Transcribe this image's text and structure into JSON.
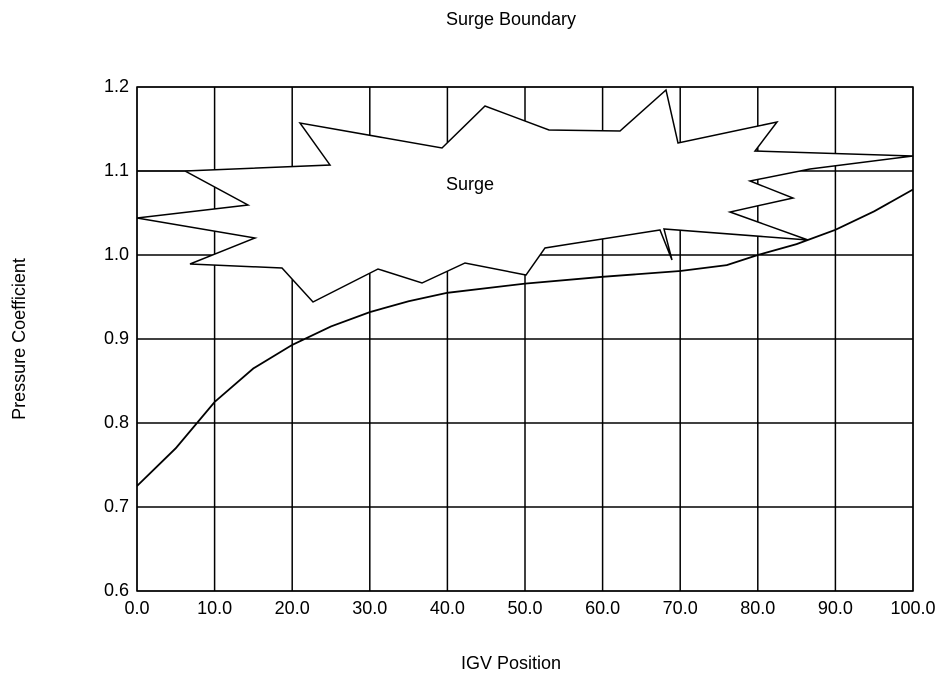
{
  "chart_data": {
    "type": "line",
    "title": "Surge Boundary",
    "x_label": "IGV Position",
    "y_label": "Pressure Coefficient",
    "annotation": "Surge",
    "x": [
      0,
      5,
      10,
      15,
      20,
      25,
      30,
      35,
      40,
      50,
      60,
      70,
      76,
      80,
      85,
      90,
      95,
      100
    ],
    "values": [
      0.725,
      0.77,
      0.825,
      0.865,
      0.893,
      0.915,
      0.932,
      0.945,
      0.955,
      0.966,
      0.974,
      0.981,
      0.988,
      1.0,
      1.013,
      1.03,
      1.052,
      1.078
    ],
    "color": "#000000",
    "xlim": [
      0,
      100
    ],
    "xticks": [
      {
        "value": 0,
        "label": "0.0"
      },
      {
        "value": 10,
        "label": "10.0"
      },
      {
        "value": 20,
        "label": "20.0"
      },
      {
        "value": 30,
        "label": "30.0"
      },
      {
        "value": 40,
        "label": "40.0"
      },
      {
        "value": 50,
        "label": "50.0"
      },
      {
        "value": 60,
        "label": "60.0"
      },
      {
        "value": 70,
        "label": "70.0"
      },
      {
        "value": 80,
        "label": "80.0"
      },
      {
        "value": 90,
        "label": "90.0"
      },
      {
        "value": 100,
        "label": "100.0"
      }
    ],
    "ylim": [
      0.6,
      1.2
    ],
    "yticks": [
      0.6,
      0.7,
      0.8,
      0.9,
      {
        "value": 1,
        "label": "1.0"
      },
      1.1,
      1.2
    ],
    "grid": true
  }
}
